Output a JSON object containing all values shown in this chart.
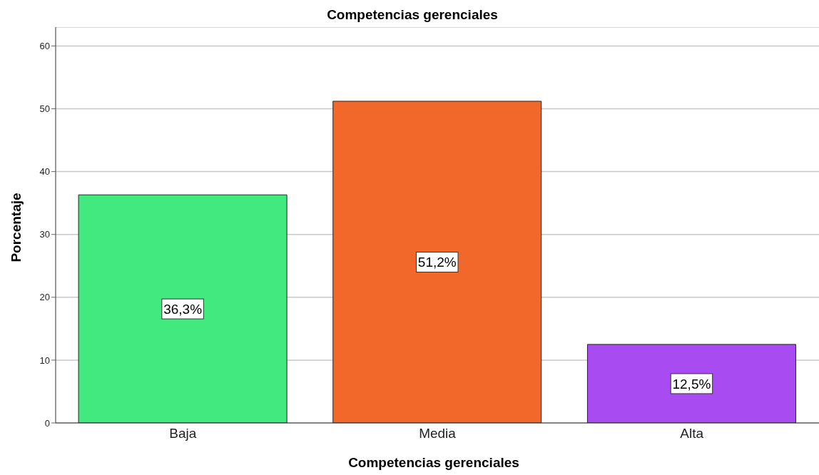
{
  "chart_data": {
    "type": "bar",
    "title": "Competencias gerenciales",
    "xlabel": "Competencias gerenciales",
    "ylabel": "Porcentaje",
    "categories": [
      "Baja",
      "Media",
      "Alta"
    ],
    "values": [
      36.3,
      51.2,
      12.5
    ],
    "colors": [
      "#41e97e",
      "#f2682b",
      "#a84cf2"
    ],
    "value_labels": [
      "36,3%",
      "51,2%",
      "12,5%"
    ],
    "ylim": [
      0,
      63
    ],
    "yticks": [
      0,
      10,
      20,
      30,
      40,
      50,
      60
    ],
    "grid": "y",
    "legend": false
  }
}
